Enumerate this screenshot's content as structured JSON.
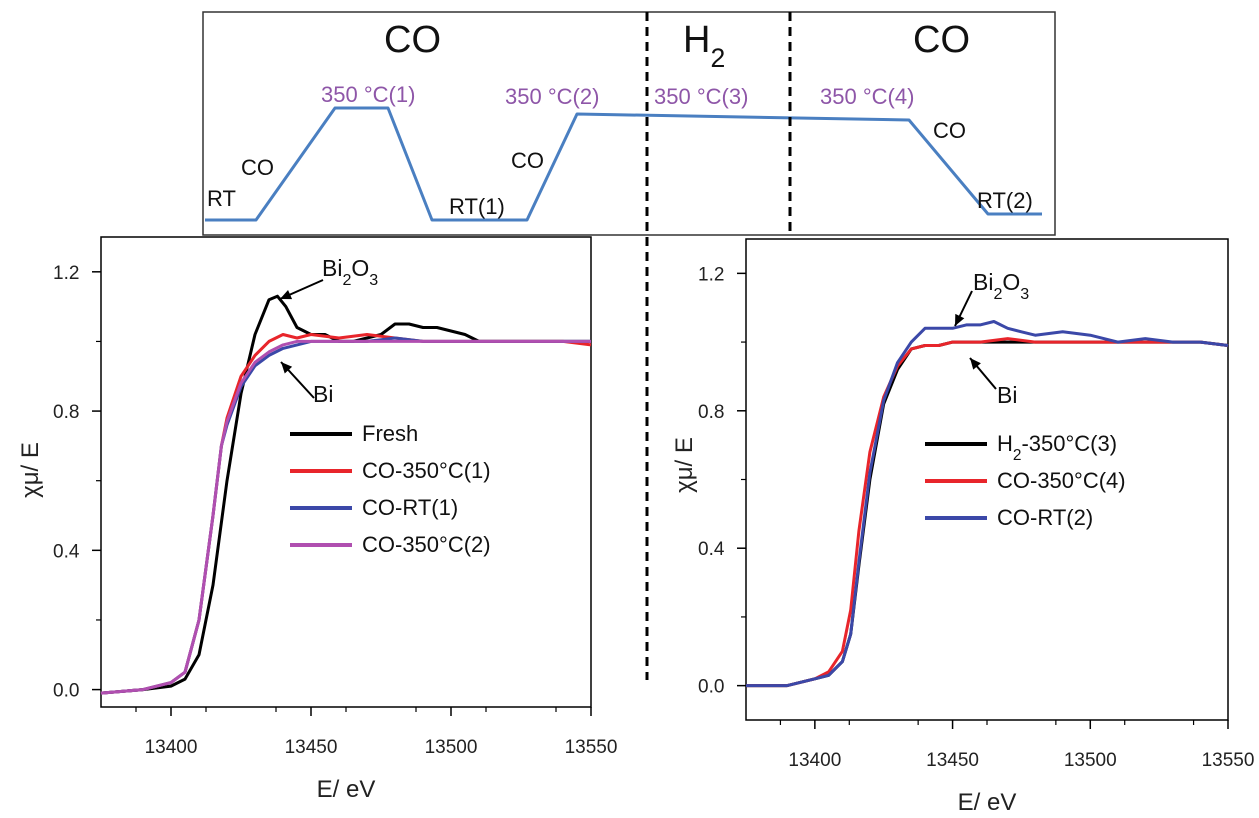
{
  "schedule": {
    "gas_sections": [
      {
        "text": "CO",
        "sub": "",
        "x_center": 0.19
      },
      {
        "text": "H",
        "sub": "2",
        "x_center": 0.5
      },
      {
        "text": "CO",
        "sub": "",
        "x_center": 0.85
      }
    ],
    "step_labels": [
      "RT",
      "CO",
      "350 °C(1)",
      "RT(1)",
      "CO",
      "350 °C(2)",
      "350 °C(3)",
      "350 °C(4)",
      "CO",
      "RT(2)"
    ],
    "line_color": "#4a7fc1",
    "temp_label_color": "#8e56a8"
  },
  "chart_data": [
    {
      "type": "line",
      "xlabel": "E/ eV",
      "ylabel": "χμ/ E",
      "xlim": [
        13375,
        13550
      ],
      "ylim": [
        -0.05,
        1.3
      ],
      "xticks": [
        13400,
        13450,
        13500,
        13550
      ],
      "yticks": [
        0.0,
        0.4,
        0.8,
        1.2
      ],
      "ytick_labels": [
        "0.0",
        "0.4",
        "0.8",
        "1.2"
      ],
      "grid": false,
      "legend_position": "center-right",
      "annotations": [
        {
          "text": "Bi",
          "sub": "2",
          "text2": "O",
          "sub2": "3",
          "x": 13437,
          "y": 1.13
        },
        {
          "text": "Bi",
          "x": 13432,
          "y": 0.96
        }
      ],
      "series": [
        {
          "name": "Fresh",
          "color": "#000000",
          "x": [
            13375,
            13390,
            13400,
            13405,
            13410,
            13415,
            13420,
            13425,
            13430,
            13435,
            13438,
            13441,
            13445,
            13450,
            13455,
            13460,
            13465,
            13470,
            13475,
            13480,
            13485,
            13490,
            13495,
            13500,
            13505,
            13510,
            13520,
            13530,
            13540,
            13550
          ],
          "values": [
            -0.01,
            0.0,
            0.01,
            0.03,
            0.1,
            0.3,
            0.6,
            0.85,
            1.02,
            1.12,
            1.13,
            1.1,
            1.04,
            1.02,
            1.02,
            1.0,
            1.0,
            1.01,
            1.02,
            1.05,
            1.05,
            1.04,
            1.04,
            1.03,
            1.02,
            1.0,
            1.0,
            1.0,
            1.0,
            1.0
          ]
        },
        {
          "name": "CO-350°C(1)",
          "color": "#e8252b",
          "x": [
            13375,
            13390,
            13400,
            13405,
            13410,
            13415,
            13418,
            13420,
            13425,
            13430,
            13435,
            13440,
            13445,
            13450,
            13460,
            13470,
            13480,
            13490,
            13500,
            13520,
            13540,
            13550
          ],
          "values": [
            -0.01,
            0.0,
            0.02,
            0.05,
            0.2,
            0.5,
            0.7,
            0.78,
            0.9,
            0.96,
            1.0,
            1.02,
            1.01,
            1.02,
            1.01,
            1.02,
            1.01,
            1.0,
            1.0,
            1.0,
            1.0,
            0.99
          ]
        },
        {
          "name": "CO-RT(1)",
          "color": "#3b48a8",
          "x": [
            13375,
            13390,
            13400,
            13405,
            13410,
            13415,
            13418,
            13420,
            13425,
            13430,
            13435,
            13440,
            13445,
            13450,
            13460,
            13470,
            13480,
            13490,
            13500,
            13520,
            13540,
            13550
          ],
          "values": [
            -0.01,
            0.0,
            0.02,
            0.05,
            0.2,
            0.5,
            0.7,
            0.76,
            0.87,
            0.93,
            0.96,
            0.98,
            0.99,
            1.0,
            1.0,
            1.0,
            1.01,
            1.0,
            1.0,
            1.0,
            1.0,
            1.0
          ]
        },
        {
          "name": "CO-350°C(2)",
          "color": "#b04fb0",
          "x": [
            13375,
            13390,
            13400,
            13405,
            13410,
            13415,
            13418,
            13420,
            13425,
            13430,
            13435,
            13440,
            13445,
            13450,
            13460,
            13470,
            13480,
            13490,
            13500,
            13520,
            13540,
            13550
          ],
          "values": [
            -0.01,
            0.0,
            0.02,
            0.05,
            0.2,
            0.5,
            0.7,
            0.77,
            0.88,
            0.94,
            0.97,
            0.99,
            1.0,
            1.0,
            1.0,
            1.0,
            1.0,
            1.0,
            1.0,
            1.0,
            1.0,
            1.0
          ]
        }
      ]
    },
    {
      "type": "line",
      "xlabel": "E/ eV",
      "ylabel": "χμ/ E",
      "xlim": [
        13375,
        13550
      ],
      "ylim": [
        -0.1,
        1.3
      ],
      "xticks": [
        13400,
        13450,
        13500,
        13550
      ],
      "yticks": [
        0.0,
        0.4,
        0.8,
        1.2
      ],
      "ytick_labels": [
        "0.0",
        "0.4",
        "0.8",
        "1.2"
      ],
      "grid": false,
      "legend_position": "center-right",
      "annotations": [
        {
          "text": "Bi",
          "sub": "2",
          "text2": "O",
          "sub2": "3",
          "x": 13441,
          "y": 1.04
        },
        {
          "text": "Bi",
          "x": 13447,
          "y": 0.98
        }
      ],
      "series": [
        {
          "name": "H₂-350°C(3)",
          "color": "#000000",
          "x": [
            13375,
            13385,
            13390,
            13395,
            13400,
            13405,
            13410,
            13413,
            13416,
            13420,
            13425,
            13430,
            13435,
            13440,
            13445,
            13450,
            13460,
            13470,
            13480,
            13490,
            13500,
            13520,
            13540,
            13550
          ],
          "values": [
            0.0,
            0.0,
            0.0,
            0.01,
            0.02,
            0.03,
            0.07,
            0.15,
            0.35,
            0.6,
            0.82,
            0.92,
            0.98,
            0.99,
            0.99,
            1.0,
            1.0,
            1.0,
            1.0,
            1.0,
            1.0,
            1.0,
            1.0,
            0.99
          ]
        },
        {
          "name": "CO-350°C(4)",
          "color": "#e8252b",
          "x": [
            13375,
            13385,
            13390,
            13395,
            13400,
            13405,
            13410,
            13413,
            13416,
            13420,
            13425,
            13430,
            13435,
            13440,
            13445,
            13450,
            13460,
            13470,
            13480,
            13490,
            13500,
            13520,
            13540,
            13550
          ],
          "values": [
            0.0,
            0.0,
            0.0,
            0.01,
            0.02,
            0.04,
            0.1,
            0.22,
            0.45,
            0.68,
            0.84,
            0.93,
            0.98,
            0.99,
            0.99,
            1.0,
            1.0,
            1.01,
            1.0,
            1.0,
            1.0,
            1.0,
            1.0,
            0.99
          ]
        },
        {
          "name": "CO-RT(2)",
          "color": "#3b48a8",
          "x": [
            13375,
            13385,
            13390,
            13395,
            13400,
            13405,
            13410,
            13413,
            13416,
            13420,
            13425,
            13430,
            13435,
            13440,
            13445,
            13450,
            13455,
            13460,
            13465,
            13470,
            13475,
            13480,
            13490,
            13500,
            13510,
            13520,
            13530,
            13540,
            13550
          ],
          "values": [
            0.0,
            0.0,
            0.0,
            0.01,
            0.02,
            0.03,
            0.07,
            0.15,
            0.36,
            0.62,
            0.83,
            0.94,
            1.0,
            1.04,
            1.04,
            1.04,
            1.05,
            1.05,
            1.06,
            1.04,
            1.03,
            1.02,
            1.03,
            1.02,
            1.0,
            1.01,
            1.0,
            1.0,
            0.99
          ]
        }
      ]
    }
  ]
}
